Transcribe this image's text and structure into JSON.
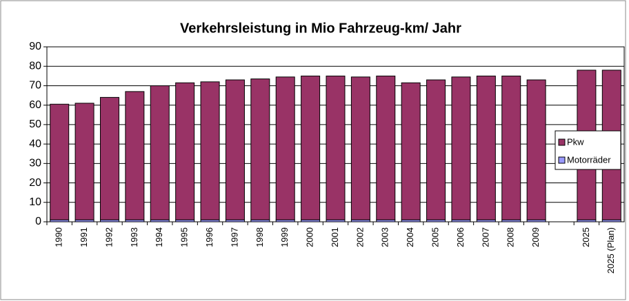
{
  "chart_data": {
    "type": "bar",
    "stacked": true,
    "title": "Verkehrsleistung in Mio Fahrzeug-km/ Jahr",
    "categories": [
      "1990",
      "1991",
      "1992",
      "1993",
      "1994",
      "1995",
      "1996",
      "1997",
      "1998",
      "1999",
      "2000",
      "2001",
      "2002",
      "2003",
      "2004",
      "2005",
      "2006",
      "2007",
      "2008",
      "2009",
      null,
      "2025",
      "2025 (Plan)"
    ],
    "series": [
      {
        "name": "Motorräder",
        "color": "#9999ff",
        "values": [
          1,
          1,
          1,
          1,
          1,
          1,
          1,
          1,
          1,
          1,
          1,
          1,
          1,
          1,
          1,
          1,
          1,
          1,
          1,
          1,
          null,
          1,
          1
        ]
      },
      {
        "name": "Pkw",
        "color": "#993366",
        "values": [
          59.5,
          60,
          63,
          66,
          69,
          70.5,
          71,
          72,
          72.5,
          73.5,
          74,
          74,
          73.5,
          74,
          70.5,
          72,
          73.5,
          74,
          74,
          72,
          null,
          77,
          77
        ]
      }
    ],
    "ylim": [
      0,
      90
    ],
    "yticks": [
      0,
      10,
      20,
      30,
      40,
      50,
      60,
      70,
      80,
      90
    ],
    "grid": true,
    "legend": "right"
  }
}
